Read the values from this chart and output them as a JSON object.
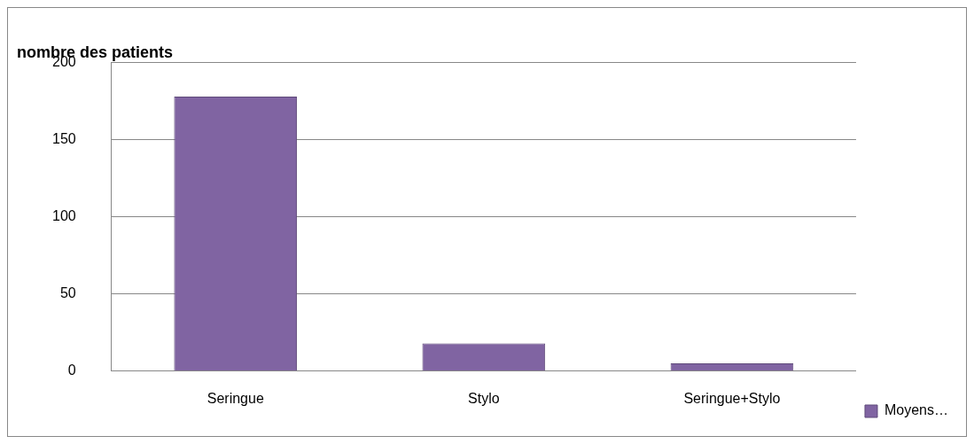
{
  "chart_data": {
    "type": "bar",
    "ylabel": "nombre des patients",
    "categories": [
      "Seringue",
      "Stylo",
      "Seringue+Stylo"
    ],
    "series": [
      {
        "name": "Moyens…",
        "color": "#8064a2",
        "values": [
          178,
          18,
          5
        ]
      }
    ],
    "ylim": [
      0,
      200
    ],
    "yticks": [
      0,
      50,
      100,
      150,
      200
    ],
    "grid": "y",
    "legend": "bottom right"
  }
}
